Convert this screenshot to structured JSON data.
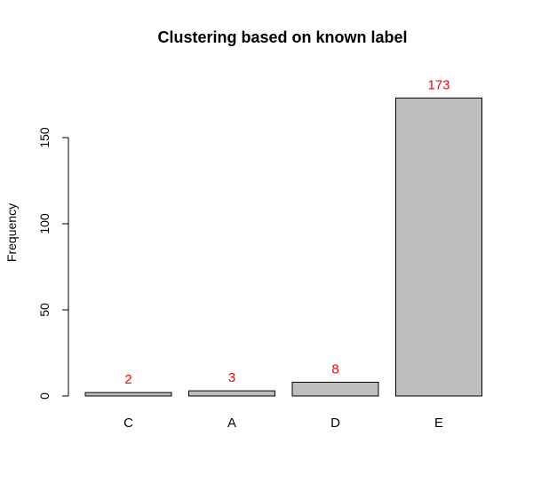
{
  "chart_data": {
    "type": "bar",
    "title": "Clustering based on known label",
    "xlabel": "",
    "ylabel": "Frequency",
    "categories": [
      "C",
      "A",
      "D",
      "E"
    ],
    "values": [
      2,
      3,
      8,
      173
    ],
    "ylim": [
      0,
      173
    ],
    "yticks": [
      0,
      50,
      100,
      150
    ],
    "bar_color": "#bebebe",
    "label_color": "#ff0000",
    "grid": false,
    "legend": "none"
  }
}
